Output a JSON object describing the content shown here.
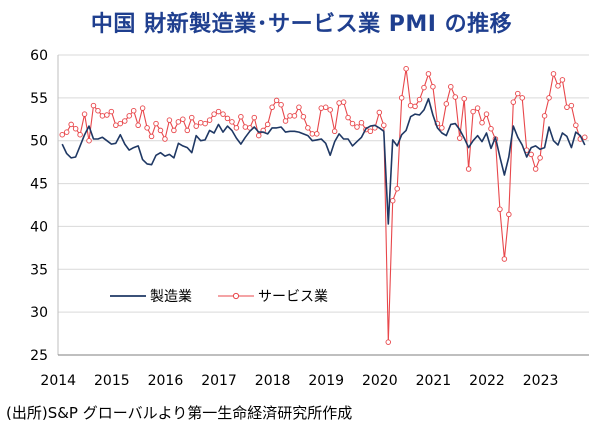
{
  "title": "中国  財新製造業･サービス業 PMI の推移",
  "source_note": "(出所)S&P グローバルより第一生命経済研究所作成",
  "colors": {
    "manufacturing": "#1f3864",
    "services": "#e8474b",
    "title": "#1f3f8f",
    "grid": "#d9d9d9"
  },
  "chart_data": {
    "type": "line",
    "title": "中国  財新製造業･サービス業 PMI の推移",
    "xlabel": "",
    "ylabel": "",
    "ylim": [
      25,
      60
    ],
    "yticks": [
      25,
      30,
      35,
      40,
      45,
      50,
      55,
      60
    ],
    "xticks": [
      "2014",
      "2015",
      "2016",
      "2017",
      "2018",
      "2019",
      "2020",
      "2021",
      "2022",
      "2023"
    ],
    "x_start": "2014-01",
    "x_end": "2023-10",
    "grid": "horizontal",
    "legend_position": "lower-left",
    "series": [
      {
        "name": "製造業",
        "marker": "none",
        "values": [
          49.6,
          48.5,
          48.0,
          48.1,
          49.4,
          50.7,
          51.7,
          50.2,
          50.2,
          50.4,
          50.0,
          49.6,
          49.7,
          50.7,
          49.6,
          48.9,
          49.2,
          49.4,
          47.8,
          47.3,
          47.2,
          48.3,
          48.6,
          48.2,
          48.4,
          48.0,
          49.7,
          49.4,
          49.2,
          48.6,
          50.6,
          50.0,
          50.1,
          51.2,
          50.9,
          51.9,
          51.0,
          51.7,
          51.2,
          50.3,
          49.6,
          50.4,
          51.1,
          51.6,
          51.0,
          51.0,
          50.8,
          51.5,
          51.5,
          51.6,
          51.0,
          51.1,
          51.1,
          51.0,
          50.8,
          50.6,
          50.0,
          50.1,
          50.2,
          49.7,
          48.3,
          49.9,
          50.8,
          50.2,
          50.2,
          49.4,
          49.9,
          50.4,
          51.4,
          51.7,
          51.8,
          51.5,
          51.1,
          40.3,
          50.1,
          49.4,
          50.7,
          51.2,
          52.8,
          53.1,
          53.0,
          53.6,
          54.9,
          53.0,
          51.5,
          50.9,
          50.6,
          51.9,
          52.0,
          51.3,
          50.3,
          49.2,
          50.0,
          50.6,
          49.9,
          50.9,
          49.1,
          50.4,
          48.1,
          46.0,
          48.1,
          51.7,
          50.4,
          49.5,
          48.1,
          49.2,
          49.4,
          49.0,
          49.2,
          51.6,
          50.0,
          49.5,
          50.9,
          50.5,
          49.2,
          51.0,
          50.6,
          49.5
        ]
      },
      {
        "name": "サービス業",
        "marker": "circle",
        "values": [
          50.7,
          51.0,
          51.9,
          51.4,
          50.7,
          53.1,
          50.0,
          54.1,
          53.5,
          52.9,
          53.0,
          53.4,
          51.8,
          52.0,
          52.3,
          52.9,
          53.5,
          51.8,
          53.8,
          51.5,
          50.5,
          52.0,
          51.2,
          50.2,
          52.4,
          51.2,
          52.2,
          52.5,
          51.2,
          52.7,
          51.7,
          52.1,
          52.0,
          52.4,
          53.1,
          53.4,
          53.1,
          52.6,
          52.2,
          51.5,
          52.8,
          51.6,
          51.5,
          52.7,
          50.6,
          51.2,
          51.9,
          53.9,
          54.7,
          54.2,
          52.3,
          52.9,
          52.9,
          53.9,
          52.8,
          51.5,
          50.8,
          50.8,
          53.8,
          53.9,
          53.6,
          51.1,
          54.4,
          54.5,
          52.7,
          52.0,
          51.6,
          52.1,
          51.3,
          51.1,
          51.5,
          53.3,
          51.8,
          26.5,
          43.0,
          44.4,
          55.0,
          58.4,
          54.1,
          54.0,
          54.8,
          56.2,
          57.8,
          56.3,
          52.0,
          51.5,
          54.3,
          56.3,
          55.1,
          50.3,
          54.9,
          46.7,
          53.4,
          53.8,
          52.1,
          53.1,
          51.4,
          50.2,
          42.0,
          36.2,
          41.4,
          54.5,
          55.5,
          55.0,
          48.9,
          48.4,
          46.7,
          48.0,
          52.9,
          55.0,
          57.8,
          56.4,
          57.1,
          53.9,
          54.1,
          51.8,
          50.2,
          50.4
        ]
      }
    ]
  }
}
